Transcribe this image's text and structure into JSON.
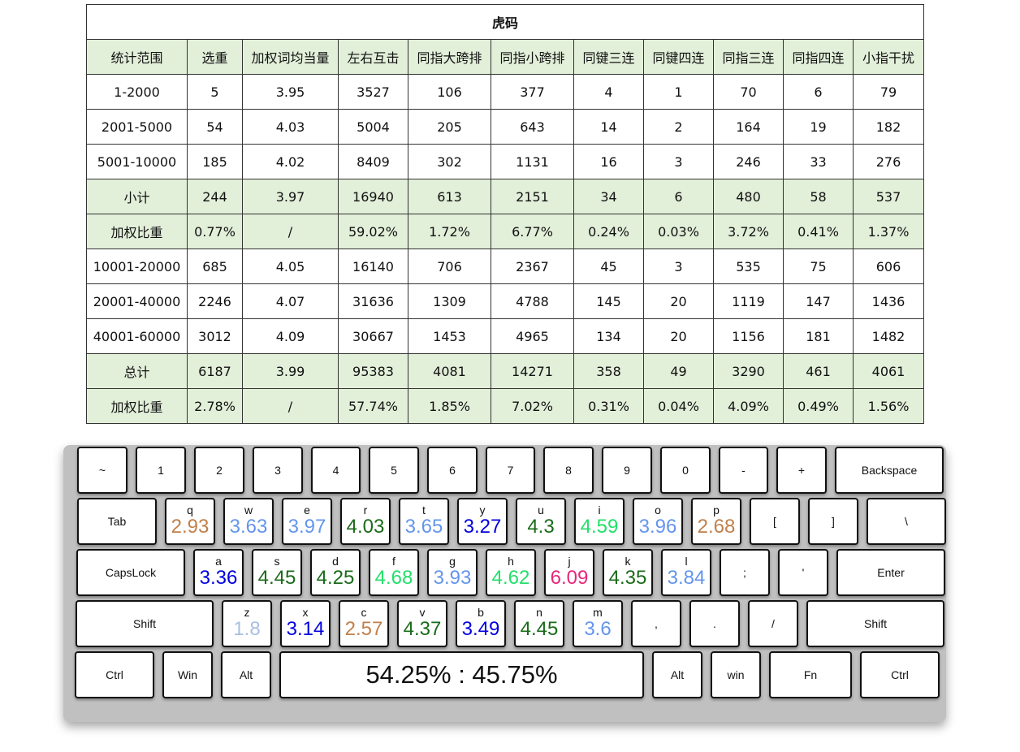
{
  "table": {
    "title": "虎码",
    "headers": [
      "统计范围",
      "选重",
      "加权词均当量",
      "左右互击",
      "同指大跨排",
      "同指小跨排",
      "同键三连",
      "同键四连",
      "同指三连",
      "同指四连",
      "小指干扰"
    ],
    "rows": [
      {
        "cells": [
          "1-2000",
          "5",
          "3.95",
          "3527",
          "106",
          "377",
          "4",
          "1",
          "70",
          "6",
          "79"
        ],
        "highlight": false
      },
      {
        "cells": [
          "2001-5000",
          "54",
          "4.03",
          "5004",
          "205",
          "643",
          "14",
          "2",
          "164",
          "19",
          "182"
        ],
        "highlight": false
      },
      {
        "cells": [
          "5001-10000",
          "185",
          "4.02",
          "8409",
          "302",
          "1131",
          "16",
          "3",
          "246",
          "33",
          "276"
        ],
        "highlight": false
      },
      {
        "cells": [
          "小计",
          "244",
          "3.97",
          "16940",
          "613",
          "2151",
          "34",
          "6",
          "480",
          "58",
          "537"
        ],
        "highlight": true
      },
      {
        "cells": [
          "加权比重",
          "0.77%",
          "/",
          "59.02%",
          "1.72%",
          "6.77%",
          "0.24%",
          "0.03%",
          "3.72%",
          "0.41%",
          "1.37%"
        ],
        "highlight": true
      },
      {
        "cells": [
          "10001-20000",
          "685",
          "4.05",
          "16140",
          "706",
          "2367",
          "45",
          "3",
          "535",
          "75",
          "606"
        ],
        "highlight": false
      },
      {
        "cells": [
          "20001-40000",
          "2246",
          "4.07",
          "31636",
          "1309",
          "4788",
          "145",
          "20",
          "1119",
          "147",
          "1436"
        ],
        "highlight": false
      },
      {
        "cells": [
          "40001-60000",
          "3012",
          "4.09",
          "30667",
          "1453",
          "4965",
          "134",
          "20",
          "1156",
          "181",
          "1482"
        ],
        "highlight": false
      },
      {
        "cells": [
          "总计",
          "6187",
          "3.99",
          "95383",
          "4081",
          "14271",
          "358",
          "49",
          "3290",
          "461",
          "4061"
        ],
        "highlight": true
      },
      {
        "cells": [
          "加权比重",
          "2.78%",
          "/",
          "57.74%",
          "1.85%",
          "7.02%",
          "0.31%",
          "0.04%",
          "4.09%",
          "0.49%",
          "1.56%"
        ],
        "highlight": true
      }
    ]
  },
  "keyboard": {
    "space_label": "54.25% : 45.75%",
    "rows": [
      [
        {
          "label": "~"
        },
        {
          "label": "1"
        },
        {
          "label": "2"
        },
        {
          "label": "3"
        },
        {
          "label": "4"
        },
        {
          "label": "5"
        },
        {
          "label": "6"
        },
        {
          "label": "7"
        },
        {
          "label": "8"
        },
        {
          "label": "9"
        },
        {
          "label": "0"
        },
        {
          "label": "-"
        },
        {
          "label": "+"
        },
        {
          "label": "Backspace"
        }
      ],
      [
        {
          "label": "Tab"
        },
        {
          "letter": "q",
          "value": "2.93",
          "color": "#c0804a"
        },
        {
          "letter": "w",
          "value": "3.63",
          "color": "#6495ed"
        },
        {
          "letter": "e",
          "value": "3.97",
          "color": "#6495ed"
        },
        {
          "letter": "r",
          "value": "4.03",
          "color": "#1a6b1a"
        },
        {
          "letter": "t",
          "value": "3.65",
          "color": "#6495ed"
        },
        {
          "letter": "y",
          "value": "3.27",
          "color": "#0000e0"
        },
        {
          "letter": "u",
          "value": "4.3",
          "color": "#1a6b1a"
        },
        {
          "letter": "i",
          "value": "4.59",
          "color": "#22e06a"
        },
        {
          "letter": "o",
          "value": "3.96",
          "color": "#6495ed"
        },
        {
          "letter": "p",
          "value": "2.68",
          "color": "#c0804a"
        },
        {
          "label": "["
        },
        {
          "label": "]"
        },
        {
          "label": "\\"
        }
      ],
      [
        {
          "label": "CapsLock"
        },
        {
          "letter": "a",
          "value": "3.36",
          "color": "#0000e0"
        },
        {
          "letter": "s",
          "value": "4.45",
          "color": "#1a6b1a"
        },
        {
          "letter": "d",
          "value": "4.25",
          "color": "#1a6b1a"
        },
        {
          "letter": "f",
          "value": "4.68",
          "color": "#22e06a"
        },
        {
          "letter": "g",
          "value": "3.93",
          "color": "#6495ed"
        },
        {
          "letter": "h",
          "value": "4.62",
          "color": "#22e06a"
        },
        {
          "letter": "j",
          "value": "6.09",
          "color": "#e8267a"
        },
        {
          "letter": "k",
          "value": "4.35",
          "color": "#1a6b1a"
        },
        {
          "letter": "l",
          "value": "3.84",
          "color": "#6495ed"
        },
        {
          "label": ";"
        },
        {
          "label": "'"
        },
        {
          "label": "Enter"
        }
      ],
      [
        {
          "label": "Shift"
        },
        {
          "letter": "z",
          "value": "1.8",
          "color": "#a9bfe0"
        },
        {
          "letter": "x",
          "value": "3.14",
          "color": "#0000e0"
        },
        {
          "letter": "c",
          "value": "2.57",
          "color": "#c0804a"
        },
        {
          "letter": "v",
          "value": "4.37",
          "color": "#1a6b1a"
        },
        {
          "letter": "b",
          "value": "3.49",
          "color": "#0000e0"
        },
        {
          "letter": "n",
          "value": "4.45",
          "color": "#1a6b1a"
        },
        {
          "letter": "m",
          "value": "3.6",
          "color": "#6495ed"
        },
        {
          "label": ","
        },
        {
          "label": "."
        },
        {
          "label": "/"
        },
        {
          "label": "Shift"
        }
      ],
      [
        {
          "label": "Ctrl"
        },
        {
          "label": "Win"
        },
        {
          "label": "Alt"
        },
        {
          "space": true
        },
        {
          "label": "Alt"
        },
        {
          "label": "win"
        },
        {
          "label": "Fn"
        },
        {
          "label": "Ctrl"
        }
      ]
    ]
  }
}
